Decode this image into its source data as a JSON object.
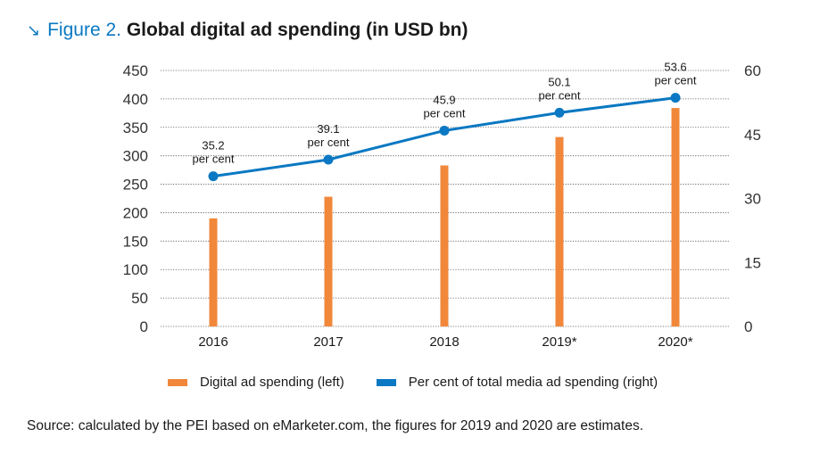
{
  "title": {
    "arrow": "↘",
    "figure_label": "Figure 2.",
    "text": "Global digital ad spending (in USD bn)"
  },
  "colors": {
    "bar": "#f0873a",
    "line": "#0a78c2",
    "accent": "#0a78c2"
  },
  "chart_data": {
    "type": "bar",
    "title": "Global digital ad spending (in USD bn)",
    "categories": [
      "2016",
      "2017",
      "2018",
      "2019*",
      "2020*"
    ],
    "series": [
      {
        "name": "Digital ad spending (left)",
        "type": "bar",
        "axis": "left",
        "values": [
          190,
          228,
          283,
          333,
          384
        ]
      },
      {
        "name": "Per cent of total media ad spending (right)",
        "type": "line",
        "axis": "right",
        "values": [
          35.2,
          39.1,
          45.9,
          50.1,
          53.6
        ],
        "labels": [
          "35.2\nper cent",
          "39.1\nper cent",
          "45.9\nper cent",
          "50.1\nper cent",
          "53.6\nper cent"
        ]
      }
    ],
    "left_axis": {
      "ylim": [
        0,
        450
      ],
      "ticks": [
        "450",
        "400",
        "350",
        "300",
        "250",
        "200",
        "150",
        "100",
        "50",
        "0"
      ]
    },
    "right_axis": {
      "ylim": [
        0,
        60
      ],
      "ticks": [
        "60",
        "45",
        "30",
        "15",
        "0"
      ]
    },
    "grid": "dotted horizontal",
    "legend_position": "bottom"
  },
  "legend": {
    "bar_label": "Digital ad spending (left)",
    "line_label": "Per cent of total media ad spending (right)"
  },
  "source": "Source: calculated by the PEI based on eMarketer.com, the figures for 2019 and 2020 are estimates."
}
